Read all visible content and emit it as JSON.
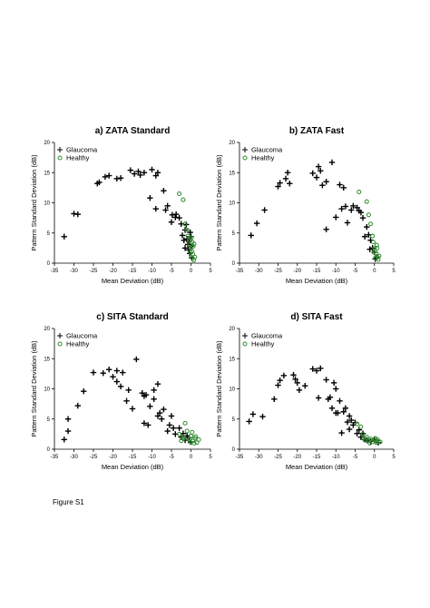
{
  "figure": {
    "caption": "Figure S1"
  },
  "chart_data": [
    {
      "type": "scatter",
      "title": "a) ZATA Standard",
      "xlabel": "Mean Deviation (dB)",
      "ylabel": "Pattern Standard Deviation (dB)",
      "xlim": [
        -35,
        5
      ],
      "ylim": [
        0,
        20
      ],
      "xticks": [
        -35,
        -30,
        -25,
        -20,
        -15,
        -10,
        -5,
        0,
        5
      ],
      "yticks": [
        0,
        5,
        10,
        15,
        20
      ],
      "legend": "top-left",
      "series": [
        {
          "name": "Glaucoma",
          "marker": "plus",
          "color": "#000000",
          "points": [
            [
              -32.5,
              4.4
            ],
            [
              -30,
              8.2
            ],
            [
              -29,
              8.1
            ],
            [
              -24,
              13.2
            ],
            [
              -23.5,
              13.4
            ],
            [
              -22,
              14.3
            ],
            [
              -21,
              14.5
            ],
            [
              -19,
              14
            ],
            [
              -18,
              14.1
            ],
            [
              -15.5,
              15.4
            ],
            [
              -14.5,
              14.8
            ],
            [
              -13.5,
              15.2
            ],
            [
              -13,
              14.6
            ],
            [
              -12,
              15
            ],
            [
              -10.5,
              10.8
            ],
            [
              -10,
              15.5
            ],
            [
              -9,
              9
            ],
            [
              -9,
              14.5
            ],
            [
              -8.5,
              15
            ],
            [
              -7,
              12
            ],
            [
              -6.5,
              8.8
            ],
            [
              -6,
              9.5
            ],
            [
              -5,
              6.8
            ],
            [
              -4.8,
              8
            ],
            [
              -4,
              7.6
            ],
            [
              -3.8,
              8.1
            ],
            [
              -3,
              7.5
            ],
            [
              -2.5,
              6.5
            ],
            [
              -2.2,
              4.6
            ],
            [
              -1.8,
              3.8
            ],
            [
              -1.5,
              5.5
            ],
            [
              -1.2,
              6.4
            ],
            [
              -1,
              4
            ],
            [
              -0.8,
              3.1
            ],
            [
              -0.6,
              2.2
            ],
            [
              -0.5,
              3.6
            ],
            [
              -0.3,
              1.6
            ],
            [
              -0.2,
              5.1
            ],
            [
              0,
              2.8
            ],
            [
              0.2,
              0.9
            ],
            [
              -1.5,
              2.5
            ],
            [
              0,
              4.4
            ]
          ]
        },
        {
          "name": "Healthy",
          "marker": "circle",
          "color": "#2e8b2e",
          "points": [
            [
              -3,
              11.5
            ],
            [
              -2,
              10.5
            ],
            [
              -1.5,
              6.5
            ],
            [
              -1,
              5.5
            ],
            [
              -0.8,
              4.5
            ],
            [
              -0.5,
              3.8
            ],
            [
              -0.3,
              3
            ],
            [
              0,
              2.5
            ],
            [
              0.2,
              2
            ],
            [
              0.3,
              3.5
            ],
            [
              0.5,
              1.5
            ],
            [
              0.6,
              2.8
            ],
            [
              0.8,
              3.2
            ],
            [
              1,
              1
            ],
            [
              0.4,
              0.8
            ],
            [
              -0.2,
              1.8
            ],
            [
              0.1,
              4.2
            ],
            [
              0.7,
              0.5
            ]
          ]
        }
      ]
    },
    {
      "type": "scatter",
      "title": "b) ZATA Fast",
      "xlabel": "Mean Deviation (dB)",
      "ylabel": "Pattern Standard Deviation (dB)",
      "xlim": [
        -35,
        5
      ],
      "ylim": [
        0,
        20
      ],
      "xticks": [
        -35,
        -30,
        -25,
        -20,
        -15,
        -10,
        -5,
        0,
        5
      ],
      "yticks": [
        0,
        5,
        10,
        15,
        20
      ],
      "legend": "top-left",
      "series": [
        {
          "name": "Glaucoma",
          "marker": "plus",
          "color": "#000000",
          "points": [
            [
              -32,
              4.6
            ],
            [
              -30.5,
              6.6
            ],
            [
              -28.5,
              8.8
            ],
            [
              -25,
              12.7
            ],
            [
              -24.5,
              13.3
            ],
            [
              -23,
              14
            ],
            [
              -22.5,
              15
            ],
            [
              -22,
              13.2
            ],
            [
              -16,
              14.9
            ],
            [
              -15,
              14.2
            ],
            [
              -14.5,
              16
            ],
            [
              -14,
              15.3
            ],
            [
              -13.5,
              12.9
            ],
            [
              -12.5,
              13.5
            ],
            [
              -11,
              16.7
            ],
            [
              -10,
              7.6
            ],
            [
              -9,
              13
            ],
            [
              -8,
              12.5
            ],
            [
              -8.5,
              9
            ],
            [
              -7.5,
              9.4
            ],
            [
              -7,
              6.7
            ],
            [
              -6,
              8.8
            ],
            [
              -5.5,
              9.5
            ],
            [
              -4.5,
              9.2
            ],
            [
              -4,
              8.7
            ],
            [
              -3.5,
              8.4
            ],
            [
              -3,
              7.5
            ],
            [
              -2,
              6
            ],
            [
              -1.5,
              4.7
            ],
            [
              -1,
              3.8
            ],
            [
              -0.5,
              2.5
            ],
            [
              0,
              1.8
            ],
            [
              0.5,
              1
            ],
            [
              -2.5,
              4.4
            ],
            [
              -1.2,
              2.3
            ],
            [
              0.2,
              0.7
            ],
            [
              -12.5,
              5.6
            ]
          ]
        },
        {
          "name": "Healthy",
          "marker": "circle",
          "color": "#2e8b2e",
          "points": [
            [
              -4,
              11.8
            ],
            [
              -2,
              10.2
            ],
            [
              -1.5,
              8
            ],
            [
              -1,
              6.5
            ],
            [
              -0.5,
              4.5
            ],
            [
              -0.3,
              3.5
            ],
            [
              0,
              2.5
            ],
            [
              0.2,
              2
            ],
            [
              0.5,
              1.5
            ],
            [
              0.6,
              3
            ],
            [
              0.8,
              1
            ],
            [
              1,
              0.6
            ],
            [
              0.3,
              0.8
            ],
            [
              -0.2,
              1.8
            ],
            [
              0.7,
              2.5
            ],
            [
              1.2,
              1.2
            ]
          ]
        }
      ]
    },
    {
      "type": "scatter",
      "title": "c) SITA Standard",
      "xlabel": "Mean Deviation (dB)",
      "ylabel": "Pattern Standard Deviation (dB)",
      "xlim": [
        -35,
        5
      ],
      "ylim": [
        0,
        20
      ],
      "xticks": [
        -35,
        -30,
        -25,
        -20,
        -15,
        -10,
        -5,
        0,
        5
      ],
      "yticks": [
        0,
        5,
        10,
        15,
        20
      ],
      "legend": "top-left",
      "series": [
        {
          "name": "Glaucoma",
          "marker": "plus",
          "color": "#000000",
          "points": [
            [
              -32.5,
              1.6
            ],
            [
              -31.5,
              5
            ],
            [
              -31.5,
              3
            ],
            [
              -29,
              7.2
            ],
            [
              -27.5,
              9.6
            ],
            [
              -25,
              12.7
            ],
            [
              -22.5,
              12.6
            ],
            [
              -21,
              13.2
            ],
            [
              -20,
              12
            ],
            [
              -19,
              11.2
            ],
            [
              -19,
              13
            ],
            [
              -18,
              10.4
            ],
            [
              -17.5,
              12.7
            ],
            [
              -16.5,
              8
            ],
            [
              -16,
              9.8
            ],
            [
              -15,
              6.7
            ],
            [
              -14,
              14.9
            ],
            [
              -12.5,
              9.3
            ],
            [
              -12,
              8.8
            ],
            [
              -11.5,
              9
            ],
            [
              -11,
              4
            ],
            [
              -10.5,
              7.1
            ],
            [
              -9.5,
              8.3
            ],
            [
              -8.5,
              10.8
            ],
            [
              -8.5,
              5.5
            ],
            [
              -8,
              6
            ],
            [
              -7.5,
              5
            ],
            [
              -7,
              6.6
            ],
            [
              -6,
              3
            ],
            [
              -5.5,
              4
            ],
            [
              -5,
              5.5
            ],
            [
              -4.5,
              3.5
            ],
            [
              -4,
              2.5
            ],
            [
              -3,
              3.5
            ],
            [
              -2.5,
              2
            ],
            [
              -2,
              2.6
            ],
            [
              -1.5,
              1.5
            ],
            [
              -1,
              2.2
            ],
            [
              -0.5,
              1.9
            ],
            [
              0,
              1.2
            ],
            [
              -9.5,
              9.8
            ],
            [
              -12,
              4.3
            ]
          ]
        },
        {
          "name": "Healthy",
          "marker": "circle",
          "color": "#2e8b2e",
          "points": [
            [
              -3,
              2.5
            ],
            [
              -2,
              2
            ],
            [
              -1.5,
              4.3
            ],
            [
              -1,
              3
            ],
            [
              -0.5,
              1.6
            ],
            [
              0,
              2.2
            ],
            [
              0.5,
              1.4
            ],
            [
              1,
              1.8
            ],
            [
              1.5,
              1.1
            ],
            [
              2,
              1.6
            ],
            [
              0.3,
              2.8
            ],
            [
              -0.3,
              1.2
            ],
            [
              0.8,
              1
            ],
            [
              1.2,
              2.1
            ],
            [
              -2.5,
              1.4
            ],
            [
              -1.8,
              1.8
            ]
          ]
        }
      ]
    },
    {
      "type": "scatter",
      "title": "d) SITA Fast",
      "xlabel": "Mean Deviation (dB)",
      "ylabel": "Pattern Standard Deviation (dB)",
      "xlim": [
        -35,
        5
      ],
      "ylim": [
        0,
        20
      ],
      "xticks": [
        -35,
        -30,
        -25,
        -20,
        -15,
        -10,
        -5,
        0,
        5
      ],
      "yticks": [
        0,
        5,
        10,
        15,
        20
      ],
      "legend": "top-left",
      "series": [
        {
          "name": "Glaucoma",
          "marker": "plus",
          "color": "#000000",
          "points": [
            [
              -32.5,
              4.6
            ],
            [
              -31.5,
              5.8
            ],
            [
              -29,
              5.4
            ],
            [
              -26,
              8.3
            ],
            [
              -25,
              10.6
            ],
            [
              -24.5,
              11.4
            ],
            [
              -23.5,
              12.2
            ],
            [
              -21,
              12.3
            ],
            [
              -20.5,
              11.6
            ],
            [
              -20,
              11
            ],
            [
              -19.5,
              9.8
            ],
            [
              -18,
              10.5
            ],
            [
              -16,
              13.3
            ],
            [
              -15,
              13
            ],
            [
              -14.5,
              8.5
            ],
            [
              -14,
              13.4
            ],
            [
              -12.5,
              11.5
            ],
            [
              -12,
              8.3
            ],
            [
              -11.5,
              8.6
            ],
            [
              -11,
              6.8
            ],
            [
              -10.5,
              11
            ],
            [
              -10,
              10
            ],
            [
              -10,
              6
            ],
            [
              -9.5,
              6
            ],
            [
              -9,
              8
            ],
            [
              -8.5,
              2.7
            ],
            [
              -8,
              6.2
            ],
            [
              -7.5,
              6.8
            ],
            [
              -7,
              4.5
            ],
            [
              -6.5,
              5.5
            ],
            [
              -6,
              4.8
            ],
            [
              -5.5,
              4
            ],
            [
              -5,
              4.4
            ],
            [
              -4.5,
              2.6
            ],
            [
              -4,
              3.2
            ],
            [
              -3.5,
              2
            ],
            [
              -3,
              2.6
            ],
            [
              -2.5,
              1.6
            ],
            [
              -2,
              1.5
            ],
            [
              -1,
              1.3
            ],
            [
              0,
              1.6
            ],
            [
              1,
              1.1
            ],
            [
              -6.5,
              3.3
            ]
          ]
        },
        {
          "name": "Healthy",
          "marker": "circle",
          "color": "#2e8b2e",
          "points": [
            [
              -4.5,
              4.2
            ],
            [
              -3.5,
              3.7
            ],
            [
              -3,
              2.5
            ],
            [
              -2.5,
              1.5
            ],
            [
              -2,
              2
            ],
            [
              -1.5,
              1.4
            ],
            [
              -1,
              1.7
            ],
            [
              -0.5,
              1.2
            ],
            [
              0,
              1.5
            ],
            [
              0.5,
              1.1
            ],
            [
              1,
              1.3
            ],
            [
              1.5,
              1.2
            ],
            [
              -1.2,
              1
            ],
            [
              0.2,
              1.8
            ],
            [
              -2.8,
              1.8
            ],
            [
              0.8,
              1.6
            ]
          ]
        }
      ]
    }
  ]
}
